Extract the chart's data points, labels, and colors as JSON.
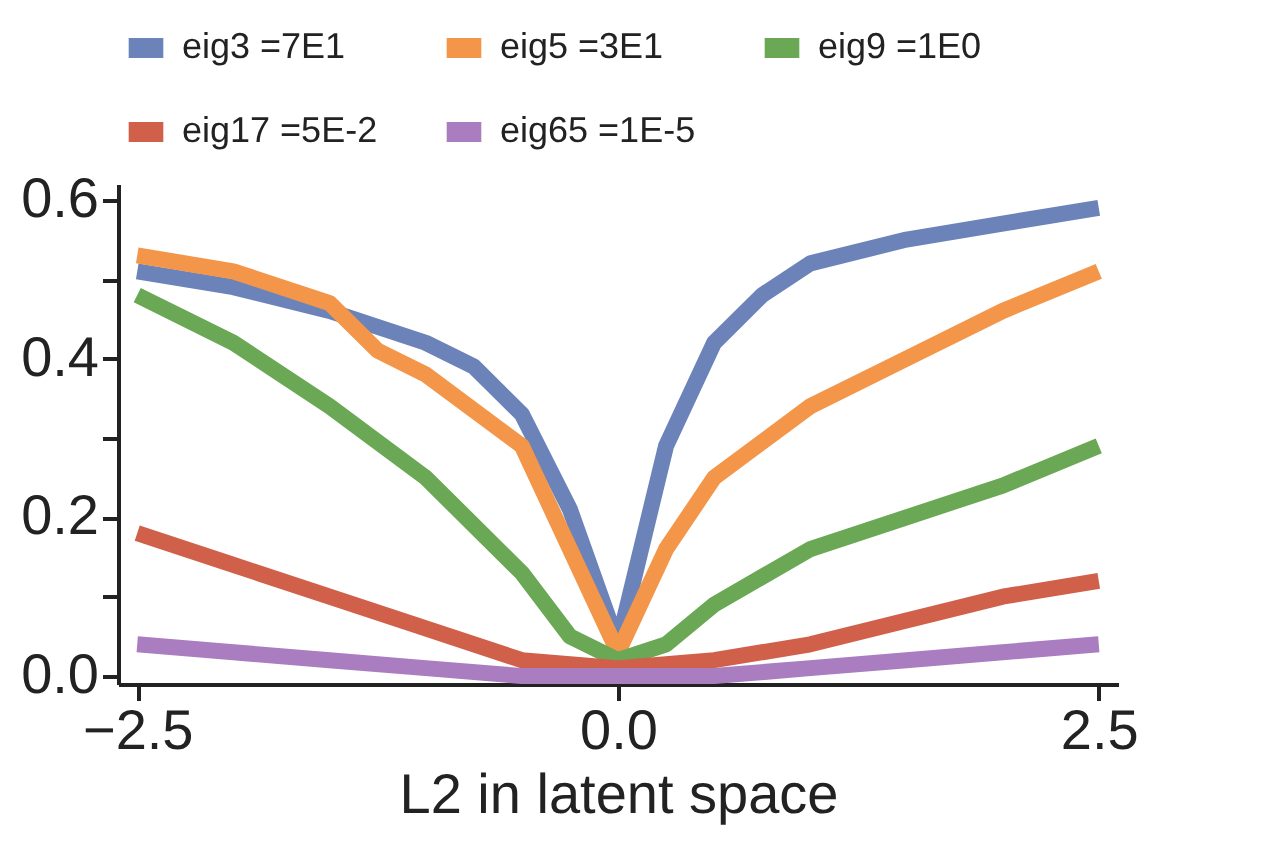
{
  "chart_data": {
    "type": "line",
    "xlabel": "L2 in latent space",
    "xlim": [
      -2.6,
      2.6
    ],
    "xticks": [
      {
        "value": -2.5,
        "label": "−2.5"
      },
      {
        "value": 0,
        "label": "0.0"
      },
      {
        "value": 2.5,
        "label": "2.5"
      }
    ],
    "ylim": [
      -0.01,
      0.62
    ],
    "yticks": [
      {
        "value": 0,
        "label": "0.0"
      },
      {
        "value": 0.1,
        "label": null
      },
      {
        "value": 0.2,
        "label": "0.2"
      },
      {
        "value": 0.3,
        "label": null
      },
      {
        "value": 0.4,
        "label": "0.4"
      },
      {
        "value": 0.5,
        "label": null
      },
      {
        "value": 0.6,
        "label": "0.6"
      }
    ],
    "grid": false,
    "legend": "top",
    "line_style": "solid",
    "series": [
      {
        "name": "eig3 =7E1",
        "color": "#6b83b8",
        "x": [
          -2.5,
          -2,
          -1.5,
          -1,
          -0.75,
          -0.5,
          -0.25,
          0,
          0.25,
          0.5,
          0.75,
          1,
          1.5,
          2,
          2.5
        ],
        "values": [
          0.51,
          0.49,
          0.46,
          0.42,
          0.39,
          0.33,
          0.21,
          0.04,
          0.29,
          0.42,
          0.48,
          0.52,
          0.55,
          0.57,
          0.59
        ]
      },
      {
        "name": "eig5 =3E1",
        "color": "#f4964a",
        "x": [
          -2.5,
          -2,
          -1.5,
          -1.25,
          -1,
          -0.5,
          -0.25,
          0,
          0.25,
          0.5,
          1,
          1.5,
          2,
          2.5
        ],
        "values": [
          0.53,
          0.51,
          0.47,
          0.41,
          0.38,
          0.29,
          0.16,
          0.03,
          0.16,
          0.25,
          0.34,
          0.4,
          0.46,
          0.51
        ]
      },
      {
        "name": "eig9 =1E0",
        "color": "#6aa855",
        "x": [
          -2.5,
          -2,
          -1.5,
          -1,
          -0.5,
          -0.25,
          0,
          0.25,
          0.5,
          1,
          1.5,
          2,
          2.5
        ],
        "values": [
          0.48,
          0.42,
          0.34,
          0.25,
          0.13,
          0.05,
          0.02,
          0.04,
          0.09,
          0.16,
          0.2,
          0.24,
          0.29
        ]
      },
      {
        "name": "eig17 =5E-2",
        "color": "#d0604a",
        "x": [
          -2.5,
          -2,
          -1.5,
          -1,
          -0.5,
          0,
          0.5,
          1,
          1.5,
          2,
          2.5
        ],
        "values": [
          0.18,
          0.14,
          0.1,
          0.06,
          0.02,
          0.01,
          0.02,
          0.04,
          0.07,
          0.1,
          0.12
        ]
      },
      {
        "name": "eig65 =1E-5",
        "color": "#a97dbf",
        "x": [
          -2.5,
          -2,
          -1.5,
          -1,
          -0.5,
          0,
          0.5,
          1,
          1.5,
          2,
          2.5
        ],
        "values": [
          0.04,
          0.03,
          0.02,
          0.01,
          0.0,
          0.0,
          0.0,
          0.01,
          0.02,
          0.03,
          0.04
        ]
      }
    ]
  }
}
